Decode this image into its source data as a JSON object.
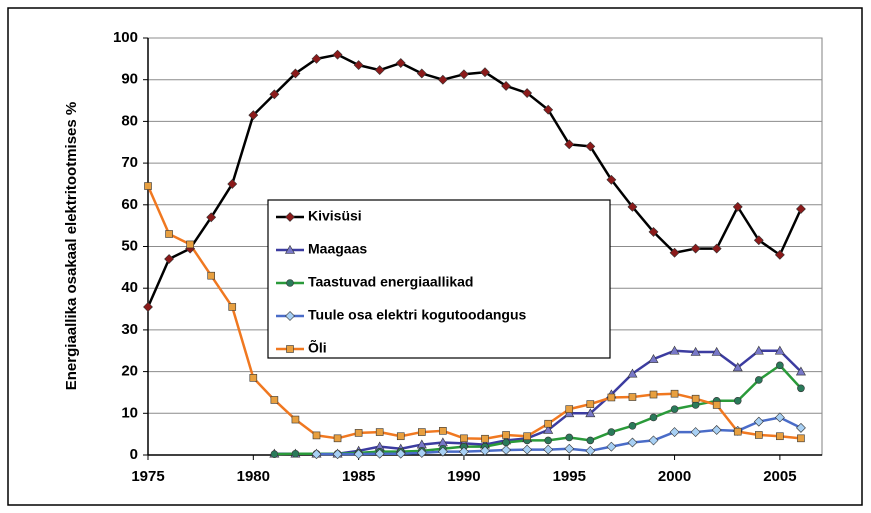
{
  "chart_data": {
    "type": "line",
    "ylabel": "Energiaallika osakaal elektritootmises  %",
    "x": [
      1975,
      1976,
      1977,
      1978,
      1979,
      1980,
      1981,
      1982,
      1983,
      1984,
      1985,
      1986,
      1987,
      1988,
      1989,
      1990,
      1991,
      1992,
      1993,
      1994,
      1995,
      1996,
      1997,
      1998,
      1999,
      2000,
      2001,
      2002,
      2003,
      2004,
      2005,
      2006
    ],
    "series": [
      {
        "name": "Kivisüsi",
        "color": "#000000",
        "marker_color": "#8b1a1a",
        "marker": "diamond",
        "values": [
          35.5,
          47,
          49.5,
          57,
          65,
          81.5,
          86.5,
          91.5,
          95,
          96,
          93.5,
          92.3,
          94,
          91.5,
          90,
          91.3,
          91.8,
          88.5,
          86.8,
          82.8,
          74.5,
          74,
          66,
          59.5,
          53.5,
          48.5,
          49.5,
          49.5,
          59.5,
          51.5,
          48,
          59
        ]
      },
      {
        "name": "Maagaas",
        "color": "#3c3ca0",
        "marker_color": "#7878c8",
        "marker": "triangle",
        "values": [
          null,
          null,
          null,
          null,
          null,
          null,
          0.3,
          0.3,
          0.3,
          0.3,
          1,
          2,
          1.5,
          2.5,
          3,
          2.8,
          2.5,
          3.5,
          4,
          6,
          10,
          10,
          14.5,
          19.5,
          23,
          25,
          24.7,
          24.7,
          21,
          25,
          25,
          20
        ]
      },
      {
        "name": "Taastuvad energiaallikad",
        "color": "#2a9a3a",
        "marker_color": "#2a7a5a",
        "marker": "circle",
        "values": [
          null,
          null,
          null,
          null,
          null,
          null,
          0.2,
          0.3,
          0.3,
          0.3,
          0.5,
          0.8,
          0.8,
          1,
          1.5,
          2,
          2,
          3,
          3.5,
          3.5,
          4.2,
          3.5,
          5.5,
          7,
          9,
          11,
          12,
          13,
          13,
          18,
          21.5,
          16
        ]
      },
      {
        "name": "Tuule osa elektri kogutoodangus",
        "color": "#4a6cc8",
        "marker_color": "#a8d0f4",
        "marker": "diamond",
        "values": [
          null,
          null,
          null,
          null,
          null,
          null,
          null,
          null,
          0.2,
          0.2,
          0.2,
          0.3,
          0.3,
          0.5,
          0.8,
          0.8,
          1,
          1.2,
          1.3,
          1.3,
          1.5,
          1,
          2,
          3,
          3.5,
          5.5,
          5.5,
          6,
          5.8,
          8,
          9,
          6.5
        ]
      },
      {
        "name": "Õli",
        "color": "#f07820",
        "marker_color": "#e8a040",
        "marker": "square",
        "values": [
          64.5,
          53,
          50.5,
          43,
          35.5,
          18.5,
          13.2,
          8.5,
          4.7,
          4,
          5.3,
          5.5,
          4.5,
          5.5,
          5.8,
          4,
          3.9,
          4.8,
          4.5,
          7.5,
          11,
          12.2,
          13.8,
          13.9,
          14.5,
          14.7,
          13.5,
          12,
          5.6,
          4.8,
          4.5,
          4
        ]
      }
    ],
    "xlim": [
      1975,
      2007
    ],
    "xticks": [
      1975,
      1980,
      1985,
      1990,
      1995,
      2000,
      2005
    ],
    "ylim": [
      0,
      100
    ],
    "yticks": [
      0,
      10,
      20,
      30,
      40,
      50,
      60,
      70,
      80,
      90,
      100
    ],
    "grid": true
  }
}
